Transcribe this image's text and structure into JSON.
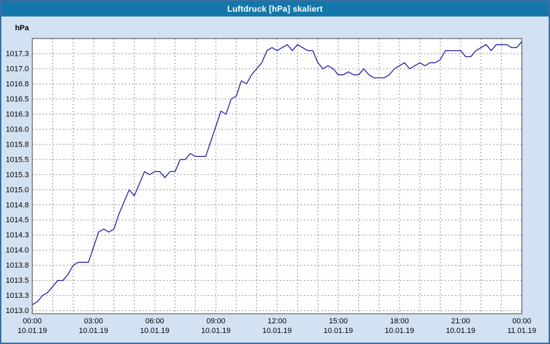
{
  "window": {
    "title": "Luftdruck [hPa] skaliert"
  },
  "colors": {
    "titlebar": "#1477a9",
    "titlebar_text": "#ffffff",
    "window_border": "#3a6ea5",
    "background": "#d3e2f2",
    "plot_bg": "#ffffff",
    "plot_border": "#404040",
    "grid": "#8f8f8f",
    "axis_text": "#000000"
  },
  "chart_data": {
    "type": "line",
    "title": "Luftdruck [hPa] skaliert",
    "xlabel": "",
    "ylabel": "hPa",
    "x_unit": "hours (10.01.19 00:00 to 11.01.19 00:00)",
    "x_range": [
      0,
      24
    ],
    "y_range": [
      1012.95,
      1017.5
    ],
    "grid": "dashed, vertical every hour, horizontal every 0.25 hPa",
    "legend": "none",
    "line_color": "#1c1ca8",
    "y_ticks": [
      {
        "label": "1017.3",
        "value": 1017.25
      },
      {
        "label": "1017.0",
        "value": 1017.0
      },
      {
        "label": "1016.8",
        "value": 1016.75
      },
      {
        "label": "1016.5",
        "value": 1016.5
      },
      {
        "label": "1016.3",
        "value": 1016.25
      },
      {
        "label": "1016.0",
        "value": 1016.0
      },
      {
        "label": "1015.8",
        "value": 1015.75
      },
      {
        "label": "1015.5",
        "value": 1015.5
      },
      {
        "label": "1015.3",
        "value": 1015.25
      },
      {
        "label": "1015.0",
        "value": 1015.0
      },
      {
        "label": "1014.8",
        "value": 1014.75
      },
      {
        "label": "1014.5",
        "value": 1014.5
      },
      {
        "label": "1014.3",
        "value": 1014.25
      },
      {
        "label": "1014.0",
        "value": 1014.0
      },
      {
        "label": "1013.8",
        "value": 1013.75
      },
      {
        "label": "1013.5",
        "value": 1013.5
      },
      {
        "label": "1013.3",
        "value": 1013.25
      },
      {
        "label": "1013.0",
        "value": 1013.0
      }
    ],
    "x_ticks": [
      {
        "t": 0,
        "time": "00:00",
        "date": "10.01.19"
      },
      {
        "t": 3,
        "time": "03:00",
        "date": "10.01.19"
      },
      {
        "t": 6,
        "time": "06:00",
        "date": "10.01.19"
      },
      {
        "t": 9,
        "time": "09:00",
        "date": "10.01.19"
      },
      {
        "t": 12,
        "time": "12:00",
        "date": "10.01.19"
      },
      {
        "t": 15,
        "time": "15:00",
        "date": "10.01.19"
      },
      {
        "t": 18,
        "time": "18:00",
        "date": "10.01.19"
      },
      {
        "t": 21,
        "time": "21:00",
        "date": "10.01.19"
      },
      {
        "t": 24,
        "time": "00:00",
        "date": "11.01.19"
      }
    ],
    "series": [
      {
        "name": "Luftdruck",
        "points": [
          [
            0.0,
            1013.1
          ],
          [
            0.25,
            1013.15
          ],
          [
            0.5,
            1013.25
          ],
          [
            0.75,
            1013.3
          ],
          [
            1.0,
            1013.4
          ],
          [
            1.25,
            1013.5
          ],
          [
            1.5,
            1013.5
          ],
          [
            1.75,
            1013.6
          ],
          [
            2.0,
            1013.75
          ],
          [
            2.25,
            1013.8
          ],
          [
            2.5,
            1013.8
          ],
          [
            2.75,
            1013.8
          ],
          [
            3.0,
            1014.05
          ],
          [
            3.25,
            1014.3
          ],
          [
            3.5,
            1014.35
          ],
          [
            3.75,
            1014.3
          ],
          [
            4.0,
            1014.35
          ],
          [
            4.25,
            1014.6
          ],
          [
            4.5,
            1014.8
          ],
          [
            4.75,
            1015.0
          ],
          [
            5.0,
            1014.9
          ],
          [
            5.25,
            1015.1
          ],
          [
            5.5,
            1015.3
          ],
          [
            5.75,
            1015.25
          ],
          [
            6.0,
            1015.3
          ],
          [
            6.25,
            1015.3
          ],
          [
            6.5,
            1015.2
          ],
          [
            6.75,
            1015.3
          ],
          [
            7.0,
            1015.3
          ],
          [
            7.25,
            1015.5
          ],
          [
            7.5,
            1015.5
          ],
          [
            7.75,
            1015.6
          ],
          [
            8.0,
            1015.55
          ],
          [
            8.25,
            1015.55
          ],
          [
            8.5,
            1015.55
          ],
          [
            8.75,
            1015.8
          ],
          [
            9.0,
            1016.05
          ],
          [
            9.25,
            1016.3
          ],
          [
            9.5,
            1016.25
          ],
          [
            9.75,
            1016.5
          ],
          [
            10.0,
            1016.55
          ],
          [
            10.25,
            1016.8
          ],
          [
            10.5,
            1016.75
          ],
          [
            10.75,
            1016.9
          ],
          [
            11.0,
            1017.0
          ],
          [
            11.25,
            1017.1
          ],
          [
            11.5,
            1017.3
          ],
          [
            11.75,
            1017.35
          ],
          [
            12.0,
            1017.3
          ],
          [
            12.25,
            1017.35
          ],
          [
            12.5,
            1017.4
          ],
          [
            12.75,
            1017.3
          ],
          [
            13.0,
            1017.4
          ],
          [
            13.25,
            1017.35
          ],
          [
            13.5,
            1017.3
          ],
          [
            13.75,
            1017.3
          ],
          [
            14.0,
            1017.1
          ],
          [
            14.25,
            1017.0
          ],
          [
            14.5,
            1017.05
          ],
          [
            14.75,
            1017.0
          ],
          [
            15.0,
            1016.9
          ],
          [
            15.25,
            1016.9
          ],
          [
            15.5,
            1016.95
          ],
          [
            15.75,
            1016.9
          ],
          [
            16.0,
            1016.9
          ],
          [
            16.25,
            1017.0
          ],
          [
            16.5,
            1016.9
          ],
          [
            16.75,
            1016.85
          ],
          [
            17.0,
            1016.85
          ],
          [
            17.25,
            1016.85
          ],
          [
            17.5,
            1016.9
          ],
          [
            17.75,
            1017.0
          ],
          [
            18.0,
            1017.05
          ],
          [
            18.25,
            1017.1
          ],
          [
            18.5,
            1017.0
          ],
          [
            18.75,
            1017.05
          ],
          [
            19.0,
            1017.1
          ],
          [
            19.25,
            1017.05
          ],
          [
            19.5,
            1017.1
          ],
          [
            19.75,
            1017.1
          ],
          [
            20.0,
            1017.15
          ],
          [
            20.25,
            1017.3
          ],
          [
            20.5,
            1017.3
          ],
          [
            20.75,
            1017.3
          ],
          [
            21.0,
            1017.3
          ],
          [
            21.25,
            1017.2
          ],
          [
            21.5,
            1017.2
          ],
          [
            21.75,
            1017.3
          ],
          [
            22.0,
            1017.35
          ],
          [
            22.25,
            1017.4
          ],
          [
            22.5,
            1017.3
          ],
          [
            22.75,
            1017.4
          ],
          [
            23.0,
            1017.4
          ],
          [
            23.25,
            1017.4
          ],
          [
            23.5,
            1017.35
          ],
          [
            23.75,
            1017.35
          ],
          [
            24.0,
            1017.45
          ]
        ]
      }
    ]
  }
}
